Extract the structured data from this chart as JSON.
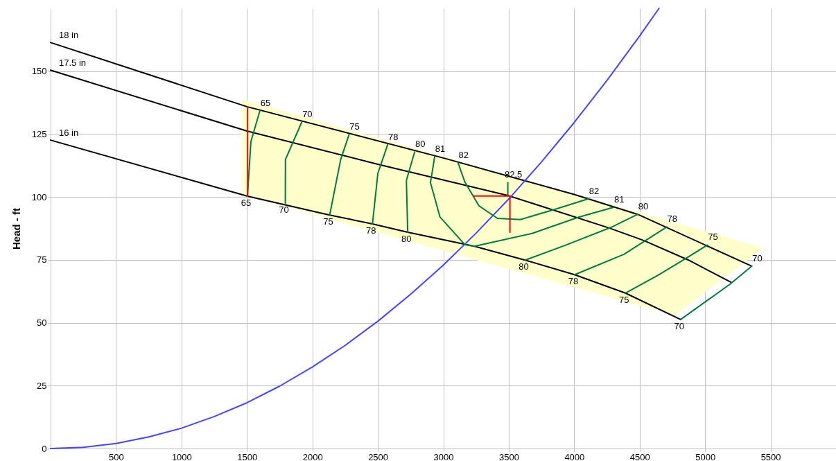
{
  "chart_data": {
    "type": "line",
    "ylabel": "Head - ft",
    "xlim": [
      0,
      6000
    ],
    "ylim": [
      0,
      175
    ],
    "xticks": [
      500,
      1000,
      1500,
      2000,
      2500,
      3000,
      3500,
      4000,
      4500,
      5000,
      5500
    ],
    "yticks": [
      0,
      25,
      50,
      75,
      100,
      125,
      150
    ],
    "grid": true,
    "series": [
      {
        "type": "area",
        "color": "#ffffcc",
        "x": [
          1460,
          4770,
          5446
        ],
        "values": [
          null,
          null,
          null
        ],
        "lower": [
          101,
          52.9,
          79.8
        ],
        "upper": [
          139,
          89.8,
          79.8
        ]
      },
      {
        "name": "18 in",
        "color": "#000000",
        "x": [
          0,
          1500,
          3000,
          4000,
          4485,
          5356
        ],
        "values": [
          161.4,
          135.9,
          115.5,
          101,
          93.1,
          72.5
        ]
      },
      {
        "name": "17.5 in",
        "color": "#000000",
        "x": [
          0,
          1500,
          2500,
          3493,
          4259,
          4531,
          4874,
          5198
        ],
        "values": [
          150.4,
          126.2,
          113,
          100.6,
          87.8,
          82.7,
          74.9,
          66.1
        ]
      },
      {
        "name": "16 in",
        "color": "#000000",
        "x": [
          0,
          1504,
          2132,
          2459,
          2728,
          3238,
          3625,
          4003,
          4391,
          4813
        ],
        "values": [
          122.6,
          100.3,
          92.8,
          89.3,
          86,
          80.4,
          74.9,
          69.1,
          61.8,
          51.3
        ]
      },
      {
        "color": "#4444ff",
        "x": [
          0,
          250,
          500,
          750,
          1000,
          1250,
          1500,
          1750,
          2000,
          2250,
          2500,
          2750,
          3000,
          3250,
          3500,
          3750,
          4000,
          4250,
          4500,
          4648
        ],
        "values": [
          0,
          0.5,
          2,
          4.6,
          8.1,
          12.7,
          18.2,
          24.8,
          32.4,
          41,
          50.6,
          61.3,
          72.9,
          85.6,
          99.2,
          113.9,
          129.6,
          146.3,
          164,
          175
        ]
      },
      {
        "color": "#007a3d",
        "x": [
          1599,
          1530,
          1504
        ],
        "values": [
          134.3,
          122,
          100.3
        ]
      },
      {
        "color": "#007a3d",
        "x": [
          1919,
          1794,
          1793
        ],
        "values": [
          129.8,
          114.9,
          97.5
        ]
      },
      {
        "color": "#007a3d",
        "x": [
          2280,
          2216,
          2132
        ],
        "values": [
          124.8,
          114.9,
          92.8
        ]
      },
      {
        "color": "#007a3d",
        "x": [
          2575,
          2500,
          2459
        ],
        "values": [
          120.8,
          109.4,
          89.3
        ]
      },
      {
        "color": "#007a3d",
        "x": [
          2781,
          2718,
          2728
        ],
        "values": [
          117.9,
          106.6,
          86
        ]
      },
      {
        "color": "#007a3d",
        "x": [
          2934,
          2902,
          2975,
          3166,
          3238,
          3678,
          4030,
          4301
        ],
        "values": [
          116,
          105.7,
          92,
          81,
          80.4,
          85.5,
          91.9,
          95.9
        ]
      },
      {
        "color": "#007a3d",
        "x": [
          3113,
          3166,
          3272,
          3414,
          3588,
          3852,
          4109
        ],
        "values": [
          113.5,
          105.8,
          96.5,
          91.5,
          91,
          95.1,
          99.3
        ]
      },
      {
        "color": "#007a3d",
        "x": [
          3493,
          3493
        ],
        "values": [
          105.7,
          100.6
        ]
      },
      {
        "color": "#007a3d",
        "x": [
          3625,
          3942,
          4294,
          4485
        ],
        "values": [
          74.9,
          81,
          88.2,
          93.1
        ]
      },
      {
        "color": "#007a3d",
        "x": [
          4003,
          4380,
          4707
        ],
        "values": [
          69.1,
          77.2,
          88.1
        ]
      },
      {
        "color": "#007a3d",
        "x": [
          4391,
          4644,
          4848,
          5018
        ],
        "values": [
          61.8,
          69,
          75.4,
          80.9
        ]
      },
      {
        "color": "#007a3d",
        "x": [
          4813,
          5190,
          5356
        ],
        "values": [
          51.3,
          65.3,
          72.5
        ]
      },
      {
        "color": "#ff0000",
        "x": [
          1505,
          1505
        ],
        "values": [
          100.3,
          135.9
        ]
      },
      {
        "color": "#ff0000",
        "x": [
          3230,
          3509,
          3509
        ],
        "values": [
          100.4,
          100.4,
          86
        ]
      }
    ],
    "annotations": [
      {
        "text": "65",
        "x": 1599,
        "y": 134.3
      },
      {
        "text": "70",
        "x": 1919,
        "y": 129.8
      },
      {
        "text": "75",
        "x": 2280,
        "y": 124.8
      },
      {
        "text": "78",
        "x": 2575,
        "y": 120.8
      },
      {
        "text": "80",
        "x": 2781,
        "y": 117.9
      },
      {
        "text": "81",
        "x": 2934,
        "y": 116
      },
      {
        "text": "82",
        "x": 3113,
        "y": 113.5
      },
      {
        "text": "82.5",
        "x": 3493,
        "y": 105.7
      },
      {
        "text": "82",
        "x": 4109,
        "y": 99.3
      },
      {
        "text": "81",
        "x": 4301,
        "y": 95.9
      },
      {
        "text": "80",
        "x": 4485,
        "y": 93.1
      },
      {
        "text": "78",
        "x": 4707,
        "y": 88.1
      },
      {
        "text": "75",
        "x": 5018,
        "y": 80.9
      },
      {
        "text": "70",
        "x": 5356,
        "y": 72.5
      },
      {
        "text": "65",
        "x": 1504,
        "y": 100.3
      },
      {
        "text": "70",
        "x": 1793,
        "y": 97.5
      },
      {
        "text": "75",
        "x": 2132,
        "y": 92.8
      },
      {
        "text": "78",
        "x": 2459,
        "y": 89.3
      },
      {
        "text": "80",
        "x": 2728,
        "y": 86
      },
      {
        "text": "80",
        "x": 3625,
        "y": 74.9
      },
      {
        "text": "78",
        "x": 4003,
        "y": 69.1
      },
      {
        "text": "75",
        "x": 4391,
        "y": 61.8
      },
      {
        "text": "70",
        "x": 4813,
        "y": 51.3
      }
    ]
  }
}
